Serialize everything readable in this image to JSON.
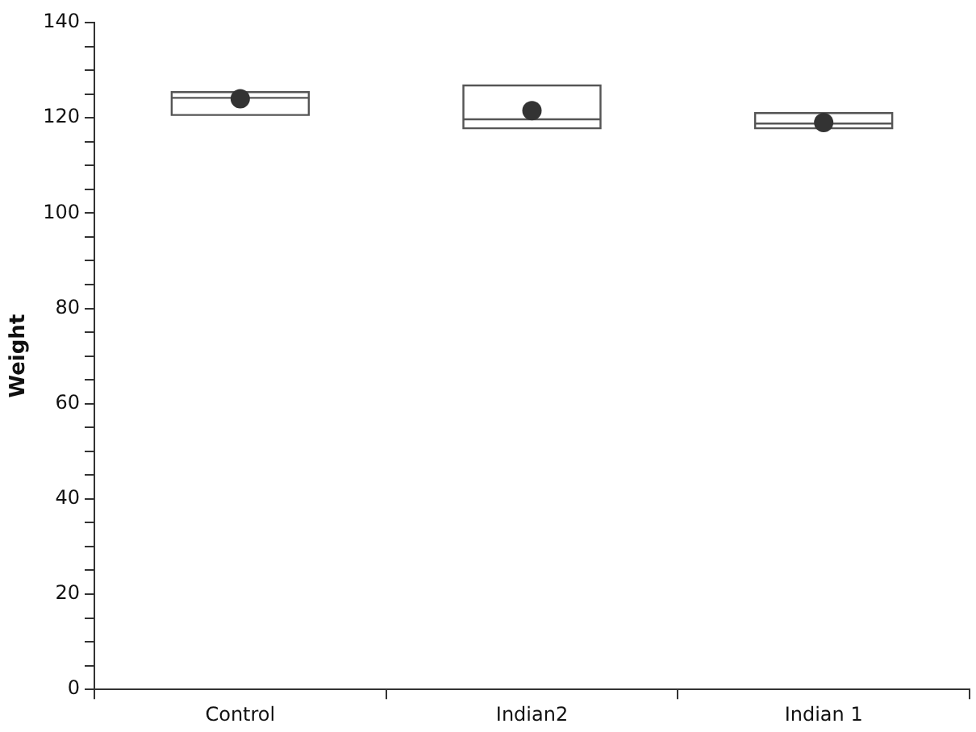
{
  "chart_data": {
    "type": "box",
    "ylabel": "Weight",
    "categories": [
      "Control",
      "Indian2",
      "Indian 1"
    ],
    "boxes": [
      {
        "low": 120.6,
        "q1": 120.6,
        "median": 124.2,
        "q3": 125.4,
        "high": 125.4,
        "mean": 124
      },
      {
        "low": 117.8,
        "q1": 117.8,
        "median": 119.7,
        "q3": 126.8,
        "high": 126.8,
        "mean": 121.5
      },
      {
        "low": 117.8,
        "q1": 117.8,
        "median": 118.8,
        "q3": 121,
        "high": 121,
        "mean": 119
      }
    ],
    "color": "#555555",
    "ylim": [
      0,
      140
    ],
    "yticks": [
      0,
      {
        "value": 5,
        "label": null
      },
      {
        "value": 10,
        "label": null
      },
      {
        "value": 15,
        "label": null
      },
      20,
      {
        "value": 25,
        "label": null
      },
      {
        "value": 30,
        "label": null
      },
      {
        "value": 35,
        "label": null
      },
      40,
      {
        "value": 45,
        "label": null
      },
      {
        "value": 50,
        "label": null
      },
      {
        "value": 55,
        "label": null
      },
      60,
      {
        "value": 65,
        "label": null
      },
      {
        "value": 70,
        "label": null
      },
      {
        "value": 75,
        "label": null
      },
      80,
      {
        "value": 85,
        "label": null
      },
      {
        "value": 90,
        "label": null
      },
      {
        "value": 95,
        "label": null
      },
      100,
      {
        "value": 105,
        "label": null
      },
      {
        "value": 110,
        "label": null
      },
      {
        "value": 115,
        "label": null
      },
      120,
      {
        "value": 125,
        "label": null
      },
      {
        "value": 130,
        "label": null
      },
      {
        "value": 135,
        "label": null
      },
      140
    ],
    "grid": false,
    "marker": "circle",
    "legend": false
  }
}
